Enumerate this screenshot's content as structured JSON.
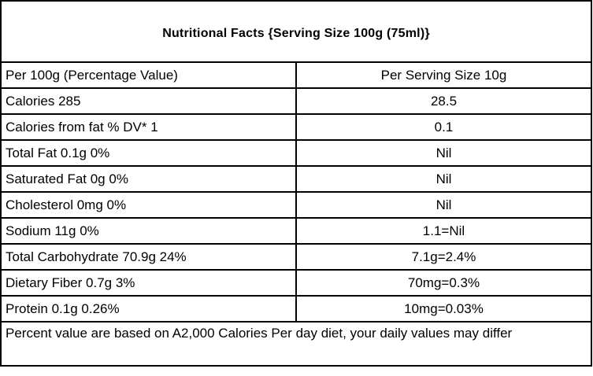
{
  "table": {
    "title": "Nutritional Facts {Serving Size 100g (75ml)}",
    "header": {
      "left": "Per 100g (Percentage Value)",
      "right": "Per Serving Size 10g"
    },
    "rows": [
      {
        "left": "Calories 285",
        "right": "28.5"
      },
      {
        "left": "Calories from fat % DV* 1",
        "right": "0.1"
      },
      {
        "left": "Total Fat 0.1g 0%",
        "right": "Nil"
      },
      {
        "left": "Saturated Fat 0g 0%",
        "right": "Nil"
      },
      {
        "left": "Cholesterol 0mg 0%",
        "right": "Nil"
      },
      {
        "left": "Sodium 11g 0%",
        "right": "1.1=Nil"
      },
      {
        "left": "Total Carbohydrate 70.9g 24%",
        "right": "7.1g=2.4%"
      },
      {
        "left": "Dietary Fiber 0.7g 3%",
        "right": "70mg=0.3%"
      },
      {
        "left": "Protein 0.1g 0.26%",
        "right": "10mg=0.03%"
      }
    ],
    "footnote": "Percent value are based on A2,000 Calories Per day diet, your daily values may differ"
  }
}
